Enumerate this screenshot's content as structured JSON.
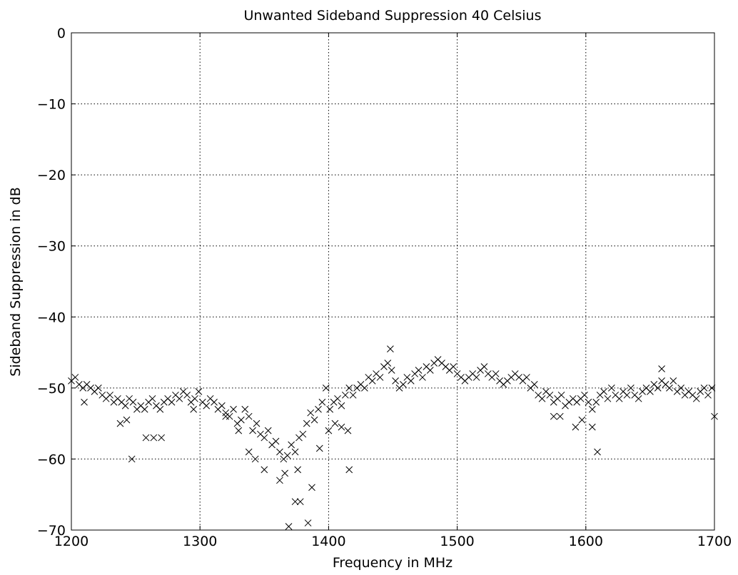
{
  "chart_data": {
    "type": "scatter",
    "title": "Unwanted Sideband Suppression 40 Celsius",
    "xlabel": "Frequency in MHz",
    "ylabel": "Sideband Suppression in dB",
    "marker": "x",
    "color": "#000000",
    "grid": true,
    "xlim": [
      1200,
      1700
    ],
    "ylim": [
      -70,
      0
    ],
    "xticks": [
      1200,
      1300,
      1400,
      1500,
      1600,
      1700
    ],
    "yticks": [
      {
        "value": -70,
        "label": "−70"
      },
      {
        "value": -60,
        "label": "−60"
      },
      {
        "value": -50,
        "label": "−50"
      },
      {
        "value": -40,
        "label": "−40"
      },
      {
        "value": -30,
        "label": "−30"
      },
      {
        "value": -20,
        "label": "−20"
      },
      {
        "value": -10,
        "label": "−10"
      },
      0
    ],
    "x": [
      1200,
      1203,
      1206,
      1209,
      1212,
      1215,
      1218,
      1221,
      1224,
      1227,
      1230,
      1233,
      1236,
      1239,
      1242,
      1245,
      1248,
      1251,
      1254,
      1257,
      1260,
      1263,
      1266,
      1269,
      1272,
      1275,
      1278,
      1281,
      1284,
      1287,
      1290,
      1293,
      1296,
      1299,
      1302,
      1305,
      1308,
      1311,
      1314,
      1317,
      1320,
      1323,
      1326,
      1329,
      1332,
      1335,
      1338,
      1341,
      1344,
      1347,
      1350,
      1353,
      1356,
      1359,
      1362,
      1365,
      1368,
      1371,
      1374,
      1377,
      1380,
      1383,
      1386,
      1389,
      1392,
      1395,
      1398,
      1401,
      1404,
      1407,
      1410,
      1413,
      1416,
      1419,
      1422,
      1425,
      1428,
      1431,
      1434,
      1437,
      1440,
      1443,
      1446,
      1449,
      1452,
      1455,
      1458,
      1461,
      1464,
      1467,
      1470,
      1473,
      1476,
      1479,
      1482,
      1485,
      1488,
      1491,
      1494,
      1497,
      1500,
      1503,
      1506,
      1509,
      1512,
      1515,
      1518,
      1521,
      1524,
      1527,
      1530,
      1533,
      1536,
      1539,
      1542,
      1545,
      1548,
      1551,
      1554,
      1557,
      1560,
      1563,
      1566,
      1569,
      1572,
      1575,
      1578,
      1581,
      1584,
      1587,
      1590,
      1593,
      1596,
      1599,
      1602,
      1605,
      1608,
      1611,
      1614,
      1617,
      1620,
      1623,
      1626,
      1629,
      1632,
      1635,
      1638,
      1641,
      1644,
      1647,
      1650,
      1653,
      1656,
      1659,
      1662,
      1665,
      1668,
      1671,
      1674,
      1677,
      1680,
      1683,
      1686,
      1689,
      1692,
      1695,
      1698,
      1210,
      1238,
      1243,
      1247,
      1258,
      1264,
      1270,
      1338,
      1343,
      1350,
      1362,
      1366,
      1369,
      1374,
      1378,
      1376,
      1384,
      1387,
      1393,
      1400,
      1405,
      1410,
      1415,
      1416,
      1448,
      1592,
      1597,
      1605,
      1609,
      1659,
      1700,
      1580,
      1575,
      1295,
      1320,
      1330
    ],
    "y": [
      -49,
      -48.5,
      -49.5,
      -50,
      -49.5,
      -50,
      -50.5,
      -50,
      -51,
      -51.5,
      -51,
      -52,
      -51.5,
      -52,
      -52.5,
      -51.5,
      -52,
      -53,
      -52.5,
      -53,
      -52,
      -51.5,
      -52.5,
      -53,
      -52,
      -51.5,
      -52,
      -51,
      -51.5,
      -50.5,
      -51,
      -52,
      -51.5,
      -50.5,
      -52,
      -52.5,
      -51.5,
      -52,
      -53,
      -52.5,
      -53.5,
      -54,
      -53,
      -55,
      -54.5,
      -53,
      -54,
      -56,
      -55,
      -56.5,
      -57,
      -56,
      -58,
      -57.5,
      -59,
      -60,
      -59.5,
      -58,
      -59,
      -57,
      -56.5,
      -55,
      -53.5,
      -54.5,
      -53,
      -52,
      -50,
      -53,
      -52,
      -51.5,
      -52.5,
      -51,
      -50,
      -51,
      -50,
      -49.5,
      -50,
      -48.5,
      -49,
      -48,
      -48.5,
      -47,
      -46.5,
      -47.5,
      -49,
      -50,
      -49.5,
      -48.5,
      -49,
      -48,
      -47.5,
      -48.5,
      -47,
      -47.5,
      -46.5,
      -46,
      -46.5,
      -47,
      -47.5,
      -47,
      -48,
      -48.5,
      -49,
      -48.5,
      -48,
      -48.5,
      -47.5,
      -47,
      -48,
      -48.5,
      -48,
      -49,
      -49.5,
      -49,
      -48.5,
      -48,
      -48.5,
      -49,
      -48.5,
      -50,
      -49.5,
      -51,
      -51.5,
      -50.5,
      -51,
      -52,
      -51.5,
      -51,
      -52.5,
      -52,
      -51.5,
      -52,
      -51.5,
      -51,
      -52,
      -53,
      -52,
      -51,
      -50.5,
      -51.5,
      -50,
      -51,
      -51.5,
      -50.5,
      -51,
      -50,
      -51,
      -51.5,
      -50.5,
      -50,
      -50.5,
      -49.5,
      -50,
      -49,
      -49.5,
      -50,
      -49,
      -50.5,
      -50,
      -51,
      -50.5,
      -51,
      -51.5,
      -50.5,
      -50,
      -51,
      -50,
      -52,
      -55,
      -54.5,
      -60,
      -57,
      -57,
      -57,
      -59,
      -60,
      -61.5,
      -63,
      -62,
      -69.5,
      -66,
      -66,
      -61.5,
      -69,
      -64,
      -58.5,
      -56,
      -55,
      -55.5,
      -56,
      -61.5,
      -44.5,
      -55.5,
      -54.5,
      -55.5,
      -59,
      -47.3,
      -54,
      -54,
      -54,
      -53,
      -54,
      -56
    ]
  }
}
